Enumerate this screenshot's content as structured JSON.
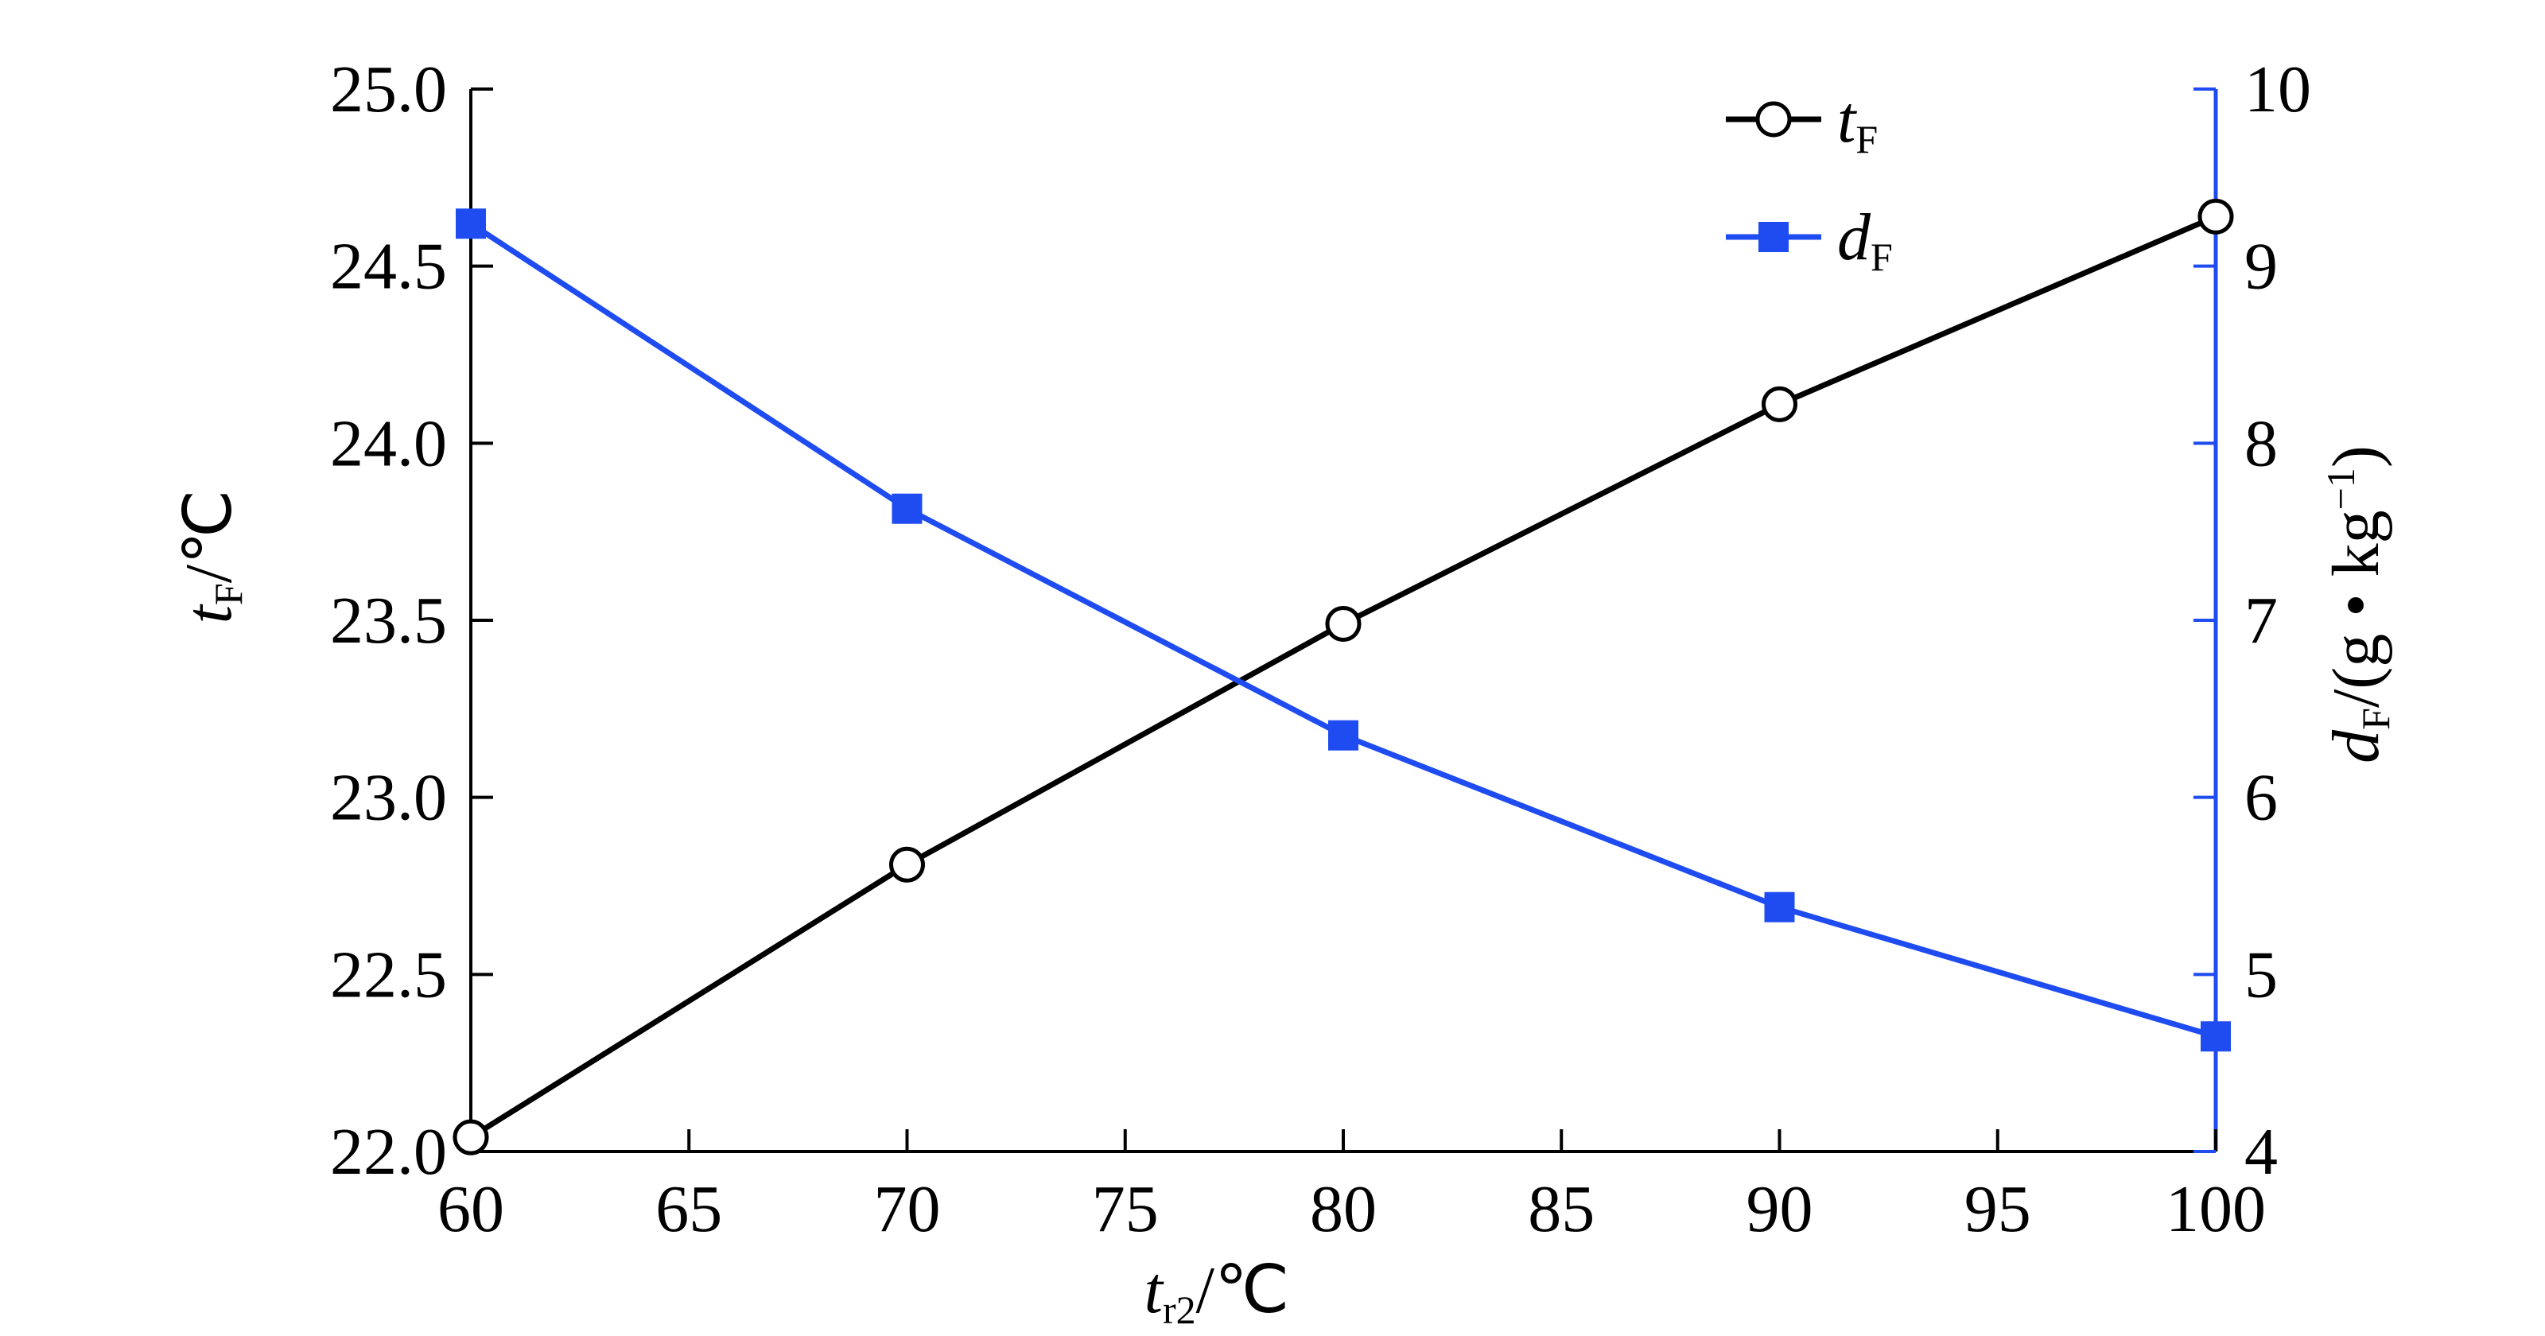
{
  "chart_data": {
    "type": "line",
    "x": [
      60,
      70,
      80,
      90,
      100
    ],
    "xlim": [
      60,
      100
    ],
    "xticks": [
      "60",
      "65",
      "70",
      "75",
      "80",
      "85",
      "90",
      "95",
      "100"
    ],
    "ylim_left": [
      22.0,
      25.0
    ],
    "yticks_left": [
      "22.0",
      "22.5",
      "23.0",
      "23.5",
      "24.0",
      "24.5",
      "25.0"
    ],
    "ylim_right": [
      4,
      10
    ],
    "yticks_right": [
      "4",
      "5",
      "6",
      "7",
      "8",
      "9",
      "10"
    ],
    "xlabel": {
      "main": "t",
      "sub": "r2",
      "unit": "/℃"
    },
    "ylabel_left": {
      "main": "t",
      "sub": "F",
      "unit": "/℃"
    },
    "ylabel_right": {
      "main": "d",
      "sub": "F",
      "unit": "/(g • kg",
      "sup": "−1",
      "close": ")"
    },
    "series": [
      {
        "name": "t",
        "name_sub": "F",
        "axis": "left",
        "marker": "open-circle",
        "color": "#000000",
        "values": [
          22.04,
          22.81,
          23.49,
          24.11,
          24.64
        ]
      },
      {
        "name": "d",
        "name_sub": "F",
        "axis": "right",
        "marker": "filled-square",
        "color": "#1f4cf0",
        "values": [
          9.24,
          7.63,
          6.35,
          5.38,
          4.65
        ]
      }
    ],
    "legend_position": "top-right",
    "grid": false
  }
}
